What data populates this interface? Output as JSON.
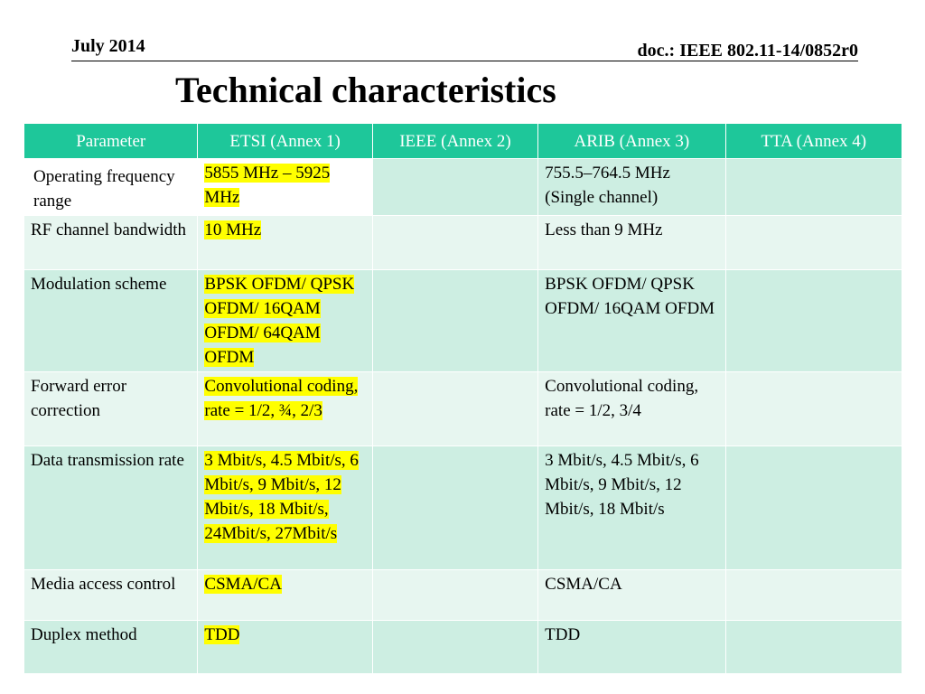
{
  "header": {
    "date": "July 2014",
    "doc_id": "doc.: IEEE 802.11-14/0852r0"
  },
  "slide": {
    "title": "Technical characteristics"
  },
  "table": {
    "columns": [
      "Parameter",
      "ETSI (Annex 1)",
      "IEEE (Annex 2)",
      "ARIB (Annex 3)",
      "TTA (Annex 4)"
    ],
    "rows": [
      {
        "parameter": "Operating frequency range",
        "etsi": "5855 MHz – 5925 MHz",
        "ieee": "",
        "arib": "755.5–764.5 MHz (Single channel)",
        "tta": ""
      },
      {
        "parameter": "RF channel bandwidth",
        "etsi": "10 MHz",
        "ieee": "",
        "arib": "Less than 9 MHz",
        "tta": ""
      },
      {
        "parameter": "Modulation scheme",
        "etsi": "BPSK OFDM/ QPSK OFDM/ 16QAM OFDM/ 64QAM OFDM",
        "ieee": "",
        "arib": "BPSK OFDM/ QPSK OFDM/ 16QAM OFDM",
        "tta": ""
      },
      {
        "parameter": "Forward error correction",
        "etsi": "Convolutional coding, rate = 1/2, ¾, 2/3",
        "ieee": "",
        "arib": "Convolutional coding, rate = 1/2, 3/4",
        "tta": ""
      },
      {
        "parameter": "Data transmission rate",
        "etsi": "3 Mbit/s, 4.5 Mbit/s, 6 Mbit/s, 9 Mbit/s, 12 Mbit/s, 18 Mbit/s, 24Mbit/s, 27Mbit/s",
        "ieee": "",
        "arib": "3 Mbit/s, 4.5 Mbit/s, 6 Mbit/s, 9 Mbit/s, 12 Mbit/s, 18 Mbit/s",
        "tta": ""
      },
      {
        "parameter": "Media access control",
        "etsi": "CSMA/CA",
        "ieee": "",
        "arib": "CSMA/CA",
        "tta": ""
      },
      {
        "parameter": "Duplex method",
        "etsi": "TDD",
        "ieee": "",
        "arib": "TDD",
        "tta": ""
      }
    ]
  },
  "colors": {
    "header_fill": "#1ec79a",
    "band_dark": "#cdeee2",
    "band_light": "#e7f6f0",
    "highlight": "#ffff00"
  }
}
